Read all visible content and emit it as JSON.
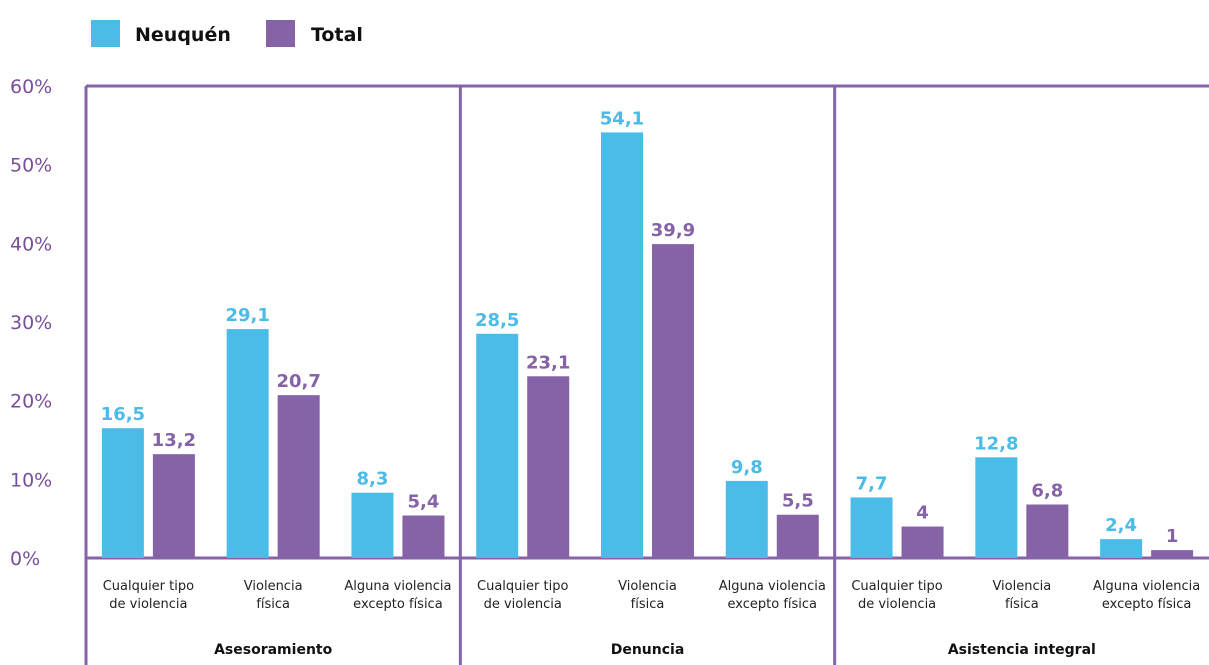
{
  "chart_data": {
    "type": "bar",
    "legend": [
      {
        "name": "Neuquén",
        "color": "#4bbbe7"
      },
      {
        "name": "Total",
        "color": "#8662a6"
      }
    ],
    "y_ticks": [
      "0%",
      "10%",
      "20%",
      "30%",
      "40%",
      "50%",
      "60%"
    ],
    "ylim": [
      0,
      60
    ],
    "groups": [
      {
        "label": "Asesoramiento",
        "categories": [
          [
            "Cualquier tipo",
            "de violencia"
          ],
          [
            "Violencia",
            "física"
          ],
          [
            "Alguna violencia",
            "excepto física"
          ]
        ]
      },
      {
        "label": "Denuncia",
        "categories": [
          [
            "Cualquier tipo",
            "de violencia"
          ],
          [
            "Violencia",
            "física"
          ],
          [
            "Alguna violencia",
            "excepto física"
          ]
        ]
      },
      {
        "label": "Asistencia integral",
        "categories": [
          [
            "Cualquier tipo",
            "de violencia"
          ],
          [
            "Violencia",
            "física"
          ],
          [
            "Alguna violencia",
            "excepto física"
          ]
        ]
      }
    ],
    "series": [
      {
        "name": "Neuquén",
        "color": "#4bbbe7",
        "values": [
          16.5,
          29.1,
          8.3,
          28.5,
          54.1,
          9.8,
          7.7,
          12.8,
          2.4
        ],
        "labels": [
          "16,5",
          "29,1",
          "8,3",
          "28,5",
          "54,1",
          "9,8",
          "7,7",
          "12,8",
          "2,4"
        ]
      },
      {
        "name": "Total",
        "color": "#8662a6",
        "values": [
          13.2,
          20.7,
          5.4,
          23.1,
          39.9,
          5.5,
          4,
          6.8,
          1
        ],
        "labels": [
          "13,2",
          "20,7",
          "5,4",
          "23,1",
          "39,9",
          "5,5",
          "4",
          "6,8",
          "1"
        ]
      }
    ],
    "frame_color": "#8662a6",
    "grid": false,
    "legend_position": "top-left"
  }
}
